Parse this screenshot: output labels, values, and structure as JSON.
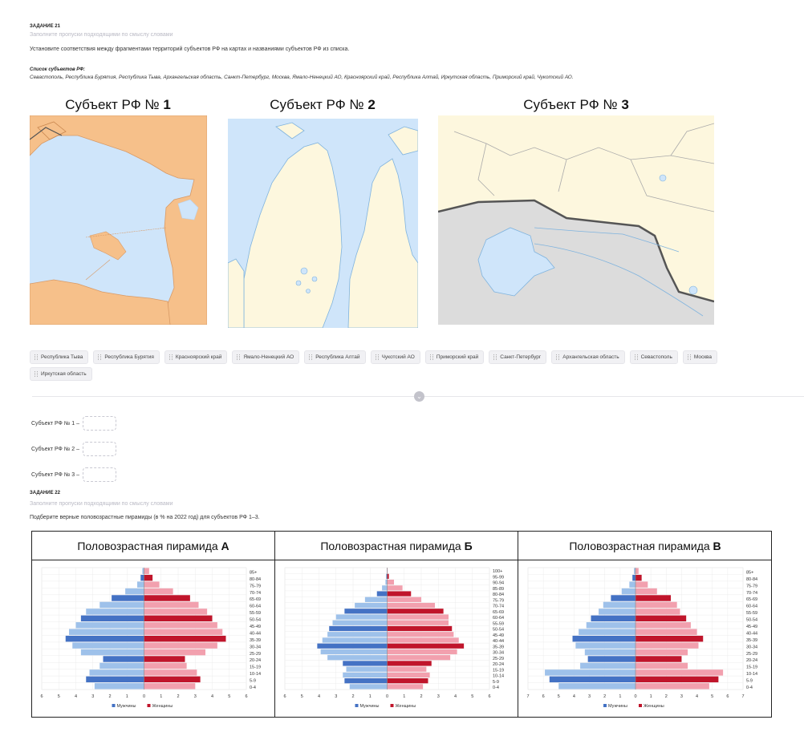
{
  "task21": {
    "heading": "ЗАДАНИЕ 21",
    "hint": "Заполните пропуски подходящими по смыслу словами",
    "instruction": "Установите соответствия между фрагментами территорий субъектов РФ на картах и названиями субъектов РФ из списка.",
    "list_title": "Список субъектов РФ:",
    "list_text": "Севастополь, Республика Бурятия, Республика Тыва, Архангельская область, Санкт-Петербург, Москва, Ямало-Ненецкий АО, Красноярский край, Республика Алтай, Иркутская область, Приморский край, Чукотский АО.",
    "maps": [
      {
        "title_prefix": "Субъект РФ № ",
        "number": "1"
      },
      {
        "title_prefix": "Субъект РФ № ",
        "number": "2"
      },
      {
        "title_prefix": "Субъект РФ № ",
        "number": "3"
      }
    ],
    "chips": [
      "Республика Тыва",
      "Республика Бурятия",
      "Красноярский край",
      "Ямало-Ненецкий АО",
      "Республика Алтай",
      "Чукотский АО",
      "Приморский край",
      "Санкт-Петербург",
      "Архангельская область",
      "Севастополь",
      "Москва",
      "Иркутская область"
    ],
    "divider_icon": "down-arrow-icon",
    "answers": [
      "Субъект РФ № 1 –",
      "Субъект РФ № 2 –",
      "Субъект РФ № 3 –"
    ]
  },
  "task22": {
    "heading": "ЗАДАНИЕ 22",
    "hint": "Заполните пропуски подходящими по смыслу словами",
    "instruction": "Подберите верные половозрастные пирамиды (в % на 2022 год) для субъектов РФ 1–3.",
    "pyramids": [
      {
        "title_prefix": "Половозрастная пирамида ",
        "letter": "А",
        "age_groups": [
          "0-4",
          "5-9",
          "10-14",
          "15-19",
          "20-24",
          "25-29",
          "30-34",
          "35-39",
          "40-44",
          "45-49",
          "50-54",
          "55-59",
          "60-64",
          "65-69",
          "70-74",
          "75-79",
          "80-84",
          "85+"
        ],
        "men": [
          2.9,
          3.4,
          3.2,
          2.6,
          2.4,
          3.7,
          4.2,
          4.6,
          4.4,
          4.0,
          3.7,
          3.4,
          2.6,
          1.9,
          1.1,
          0.4,
          0.2,
          0.1
        ],
        "women": [
          3.0,
          3.3,
          3.1,
          2.5,
          2.4,
          3.6,
          4.3,
          4.8,
          4.6,
          4.3,
          4.0,
          3.7,
          3.2,
          2.7,
          1.7,
          0.9,
          0.5,
          0.3
        ],
        "x_ticks": [
          "6",
          "5",
          "4",
          "3",
          "2",
          "1",
          "0",
          "1",
          "2",
          "3",
          "4",
          "5",
          "6"
        ],
        "legend_men": "Мужчины",
        "legend_women": "Женщины"
      },
      {
        "title_prefix": "Половозрастная пирамида ",
        "letter": "Б",
        "age_groups": [
          "0-4",
          "5-9",
          "10-14",
          "15-19",
          "20-24",
          "25-29",
          "30-34",
          "35-39",
          "40-44",
          "45-49",
          "50-54",
          "55-59",
          "60-64",
          "65-69",
          "70-74",
          "75-79",
          "80-84",
          "85-89",
          "90-94",
          "95-99",
          "100+"
        ],
        "men": [
          2.2,
          2.5,
          2.6,
          2.4,
          2.6,
          3.5,
          3.9,
          4.1,
          3.8,
          3.5,
          3.4,
          3.2,
          3.0,
          2.5,
          1.9,
          1.3,
          0.6,
          0.3,
          0.1,
          0.05,
          0.02
        ],
        "women": [
          2.1,
          2.4,
          2.5,
          2.3,
          2.6,
          3.7,
          4.1,
          4.5,
          4.2,
          3.9,
          3.8,
          3.6,
          3.6,
          3.3,
          2.8,
          2.0,
          1.4,
          0.9,
          0.4,
          0.1,
          0.03
        ],
        "x_ticks": [
          "6",
          "5",
          "4",
          "3",
          "2",
          "1",
          "0",
          "1",
          "2",
          "3",
          "4",
          "5",
          "6"
        ],
        "legend_men": "Мужчины",
        "legend_women": "Женщины"
      },
      {
        "title_prefix": "Половозрастная пирамида ",
        "letter": "В",
        "age_groups": [
          "0-4",
          "5-9",
          "10-14",
          "15-19",
          "20-24",
          "25-29",
          "30-34",
          "35-39",
          "40-44",
          "45-49",
          "50-54",
          "55-59",
          "60-64",
          "65-69",
          "70-74",
          "75-79",
          "80-84",
          "85+"
        ],
        "men": [
          5.0,
          5.6,
          5.9,
          3.6,
          3.1,
          3.3,
          3.9,
          4.1,
          3.7,
          3.2,
          2.9,
          2.4,
          2.1,
          1.6,
          0.9,
          0.4,
          0.2,
          0.1
        ],
        "women": [
          4.8,
          5.4,
          5.7,
          3.4,
          3.0,
          3.4,
          4.1,
          4.4,
          4.0,
          3.6,
          3.3,
          2.9,
          2.7,
          2.3,
          1.4,
          0.8,
          0.4,
          0.2
        ],
        "x_ticks": [
          "7",
          "6",
          "5",
          "4",
          "3",
          "2",
          "1",
          "0",
          "1",
          "2",
          "3",
          "4",
          "5",
          "6",
          "7"
        ],
        "legend_men": "Мужчины",
        "legend_women": "Женщины"
      }
    ]
  },
  "colors": {
    "men_light": "#9ec1ea",
    "men_dark": "#4472c4",
    "women_light": "#f2a0ae",
    "women_dark": "#c0152b",
    "sea": "#cfe5fa",
    "land_orange": "#f6c08a",
    "land_cream": "#fdf7de",
    "foreign_gray": "#dcdcdc"
  }
}
